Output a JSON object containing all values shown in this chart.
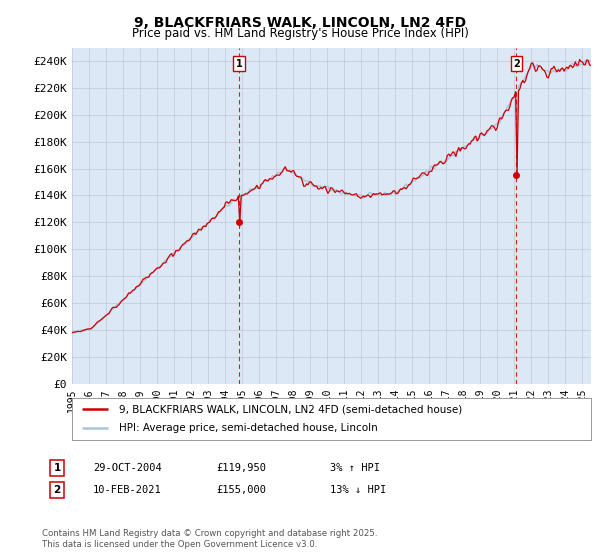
{
  "title_line1": "9, BLACKFRIARS WALK, LINCOLN, LN2 4FD",
  "title_line2": "Price paid vs. HM Land Registry's House Price Index (HPI)",
  "ylabel_ticks": [
    "£0",
    "£20K",
    "£40K",
    "£60K",
    "£80K",
    "£100K",
    "£120K",
    "£140K",
    "£160K",
    "£180K",
    "£200K",
    "£220K",
    "£240K"
  ],
  "ytick_values": [
    0,
    20000,
    40000,
    60000,
    80000,
    100000,
    120000,
    140000,
    160000,
    180000,
    200000,
    220000,
    240000
  ],
  "ylim": [
    0,
    250000
  ],
  "year_start": 1995,
  "year_end": 2025,
  "hpi_color": "#a8c4e0",
  "price_color": "#cc0000",
  "legend_label1": "9, BLACKFRIARS WALK, LINCOLN, LN2 4FD (semi-detached house)",
  "legend_label2": "HPI: Average price, semi-detached house, Lincoln",
  "sale1_label": "1",
  "sale1_date": "29-OCT-2004",
  "sale1_price": "£119,950",
  "sale1_hpi": "3% ↑ HPI",
  "sale1_year": 2004.83,
  "sale1_value": 119950,
  "sale2_label": "2",
  "sale2_date": "10-FEB-2021",
  "sale2_price": "£155,000",
  "sale2_hpi": "13% ↓ HPI",
  "sale2_year": 2021.12,
  "sale2_value": 155000,
  "footnote": "Contains HM Land Registry data © Crown copyright and database right 2025.\nThis data is licensed under the Open Government Licence v3.0.",
  "bg_color": "#ffffff",
  "plot_bg_color": "#dce8f5"
}
